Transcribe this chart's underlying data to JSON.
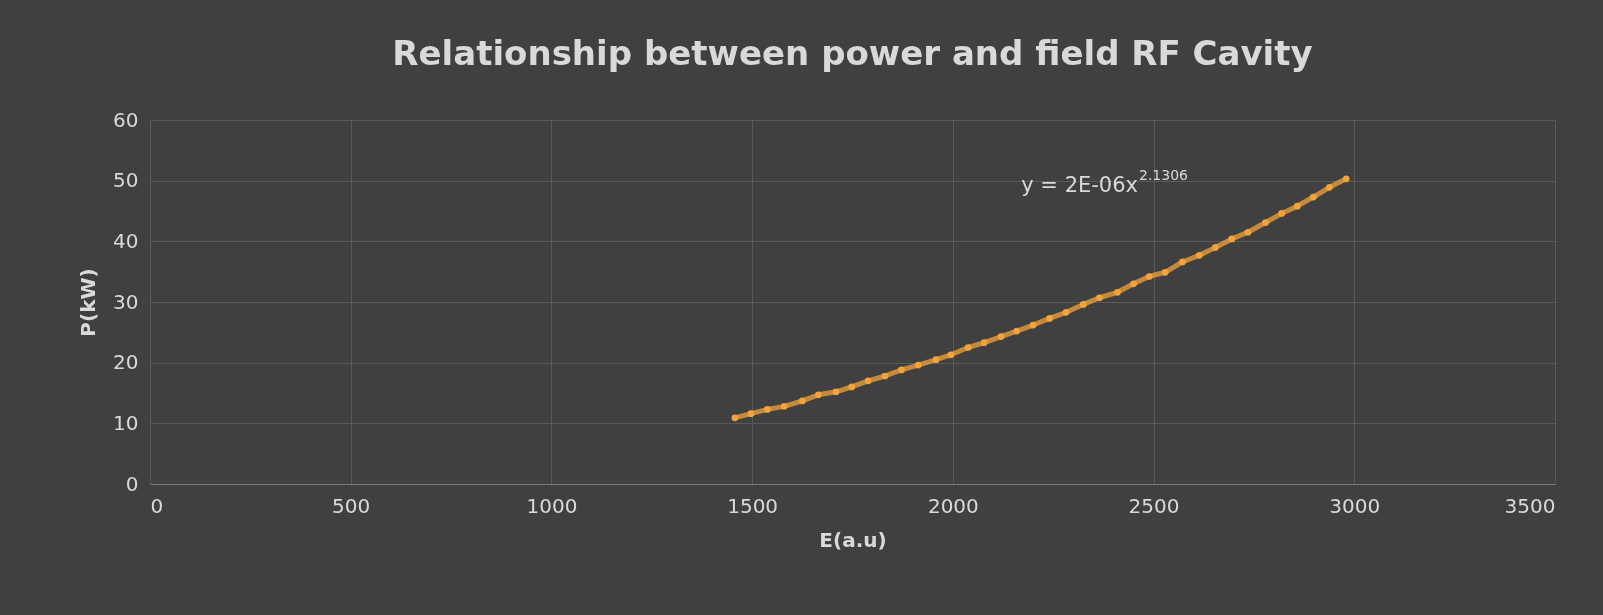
{
  "chart_data": {
    "type": "line",
    "title": "Relationship between power and field RF Cavity",
    "xlabel": "E(a.u)",
    "ylabel": "P(kW)",
    "x": [
      1457,
      1497,
      1538,
      1580,
      1625,
      1665,
      1709,
      1748,
      1789,
      1831,
      1872,
      1914,
      1958,
      1995,
      2038,
      2078,
      2120,
      2159,
      2200,
      2241,
      2282,
      2325,
      2365,
      2410,
      2450,
      2489,
      2529,
      2572,
      2614,
      2654,
      2695,
      2735,
      2779,
      2819,
      2858,
      2898,
      2938,
      2980
    ],
    "series": [
      {
        "color": "#f2a33a",
        "values": [
          10.9,
          11.6,
          12.3,
          12.8,
          13.7,
          14.7,
          15.2,
          16.0,
          17.0,
          17.8,
          18.8,
          19.6,
          20.5,
          21.3,
          22.5,
          23.3,
          24.3,
          25.2,
          26.2,
          27.3,
          28.3,
          29.6,
          30.7,
          31.6,
          33.0,
          34.2,
          34.9,
          36.6,
          37.7,
          39.0,
          40.4,
          41.5,
          43.1,
          44.6,
          45.8,
          47.3,
          48.9,
          50.3
        ]
      }
    ],
    "xlim": [
      0,
      3500
    ],
    "xticks": [
      0,
      500,
      1000,
      1500,
      2000,
      2500,
      3000,
      3500
    ],
    "ylim": [
      0,
      60
    ],
    "yticks": [
      0,
      10,
      20,
      30,
      40,
      50,
      60
    ],
    "grid": true,
    "marker": "circle",
    "line_style": "solid",
    "annotations": [
      "y = 2E-06x$^{2.1306}$"
    ]
  }
}
